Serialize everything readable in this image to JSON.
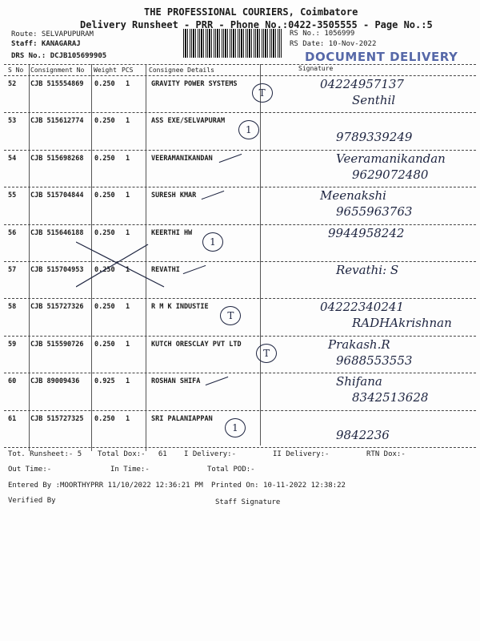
{
  "header": {
    "company": "THE PROFESSIONAL COURIERS, Coimbatore",
    "title": "Delivery Runsheet - PRR - Phone No.:0422-3505555 - Page No.:5",
    "route": "Route: SELVAPUPURAM",
    "staff": "Staff: KANAGARAJ",
    "drs": "DRS No.: DCJB105699905",
    "rs_no": "RS No.: 1056999",
    "rs_date": "RS Date: 10-Nov-2022",
    "stamp": "DOCUMENT DELIVERY"
  },
  "columns": [
    "S No",
    "Consignment No",
    "Weight",
    "PCS",
    "Consignee Details",
    "Signature"
  ],
  "rows": [
    {
      "sno": "52",
      "cn": "CJB 515554869",
      "weight": "0.250",
      "pcs": "1",
      "consignee": "GRAVITY POWER SYSTEMS",
      "sig1": "04224957137",
      "sig2": "Senthil",
      "mark": "T"
    },
    {
      "sno": "53",
      "cn": "CJB 515612774",
      "weight": "0.250",
      "pcs": "1",
      "consignee": "ASS EXE/SELVAPURAM",
      "sig1": "",
      "sig2": "9789339249",
      "mark": "1"
    },
    {
      "sno": "54",
      "cn": "CJB 515698268",
      "weight": "0.250",
      "pcs": "1",
      "consignee": "VEERAMANIKANDAN",
      "sig1": "Veeramanikandan",
      "sig2": "9629072480",
      "mark": ""
    },
    {
      "sno": "55",
      "cn": "CJB 515704844",
      "weight": "0.250",
      "pcs": "1",
      "consignee": "SURESH KMAR",
      "sig1": "Meenakshi",
      "sig2": "9655963763",
      "mark": ""
    },
    {
      "sno": "56",
      "cn": "CJB 515646188",
      "weight": "0.250",
      "pcs": "1",
      "consignee": "KEERTHI HW",
      "sig1": "9944958242",
      "sig2": "",
      "mark": "1"
    },
    {
      "sno": "57",
      "cn": "CJB 515704953",
      "weight": "0.250",
      "pcs": "1",
      "consignee": "REVATHI",
      "sig1": "Revathi: S",
      "sig2": "",
      "mark": ""
    },
    {
      "sno": "58",
      "cn": "CJB 515727326",
      "weight": "0.250",
      "pcs": "1",
      "consignee": "R M K INDUSTIE",
      "sig1": "04222340241",
      "sig2": "RADHAkrishnan",
      "mark": "T"
    },
    {
      "sno": "59",
      "cn": "CJB 515590726",
      "weight": "0.250",
      "pcs": "1",
      "consignee": "KUTCH ORESCLAY PVT LTD",
      "sig1": "Prakash.R",
      "sig2": "9688553553",
      "mark": "T"
    },
    {
      "sno": "60",
      "cn": "CJB 89009436",
      "weight": "0.925",
      "pcs": "1",
      "consignee": "ROSHAN SHIFA",
      "sig1": "Shifana",
      "sig2": "8342513628",
      "mark": ""
    },
    {
      "sno": "61",
      "cn": "CJB 515727325",
      "weight": "0.250",
      "pcs": "1",
      "consignee": "SRI PALANIAPPAN",
      "sig1": "",
      "sig2": "9842236",
      "mark": "1"
    }
  ],
  "footer": {
    "tot_runsheet": "Tot. Runsheet:- 5",
    "total_dox": "Total Dox:-   61",
    "i_delivery": "I Delivery:-",
    "ii_delivery": "II Delivery:-",
    "rtn_dox": "RTN Dox:-",
    "out_time": "Out Time:-",
    "in_time": "In Time:-",
    "total_pod": "Total POD:-",
    "entered_by": "Entered By :MOORTHYPRR 11/10/2022 12:36:21 PM",
    "printed_on": "Printed On: 10-11-2022 12:38:22",
    "verified_by": "Verified By",
    "staff_signature": "Staff Signature"
  }
}
